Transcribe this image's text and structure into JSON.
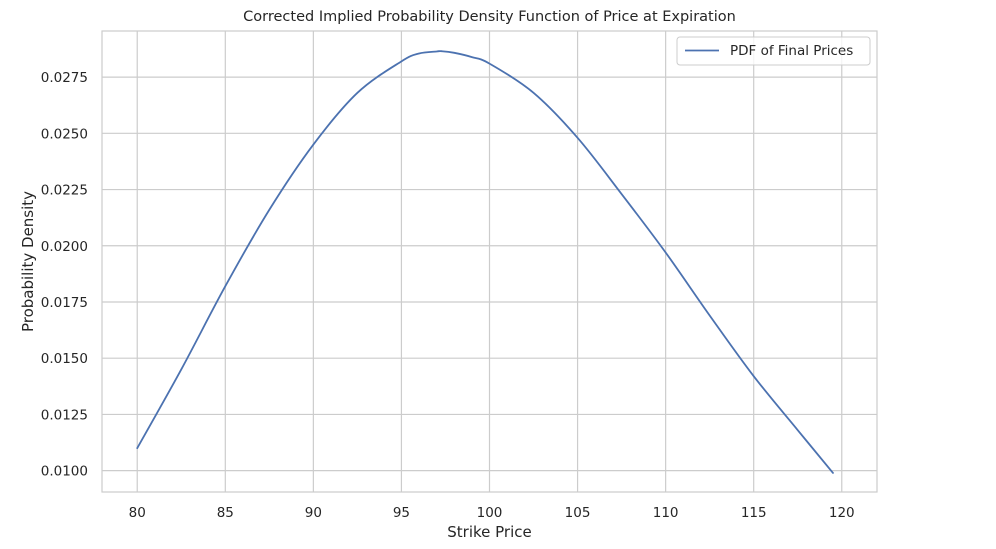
{
  "chart_data": {
    "type": "line",
    "title": "Corrected Implied Probability Density Function of Price at Expiration",
    "xlabel": "Strike Price",
    "ylabel": "Probability Density",
    "xlim": [
      78,
      122
    ],
    "ylim": [
      0.00905,
      0.02955
    ],
    "x_ticks": [
      80,
      85,
      90,
      95,
      100,
      105,
      110,
      115,
      120
    ],
    "y_ticks": [
      0.01,
      0.0125,
      0.015,
      0.0175,
      0.02,
      0.0225,
      0.025,
      0.0275
    ],
    "x_tick_labels": [
      "80",
      "85",
      "90",
      "95",
      "100",
      "105",
      "110",
      "115",
      "120"
    ],
    "y_tick_labels": [
      "0.0100",
      "0.0125",
      "0.0150",
      "0.0175",
      "0.0200",
      "0.0225",
      "0.0250",
      "0.0275"
    ],
    "grid": true,
    "legend_position": "top-right",
    "colors": {
      "line": "#4c72b0",
      "grid": "#cccccc",
      "axis": "#cccccc",
      "background": "#ffffff"
    },
    "series": [
      {
        "name": "PDF of Final Prices",
        "x": [
          80,
          82.5,
          85,
          87.5,
          90,
          92.5,
          95,
          96,
          97,
          97.3,
          98,
          99,
          100,
          102.5,
          105,
          107.5,
          110,
          112.5,
          115,
          117.5,
          119.5
        ],
        "y": [
          0.011,
          0.0145,
          0.0182,
          0.0216,
          0.0245,
          0.0268,
          0.0282,
          0.02855,
          0.02864,
          0.02865,
          0.02858,
          0.02839,
          0.0281,
          0.0268,
          0.0248,
          0.0223,
          0.0197,
          0.0169,
          0.0142,
          0.0118,
          0.0099
        ]
      }
    ]
  }
}
